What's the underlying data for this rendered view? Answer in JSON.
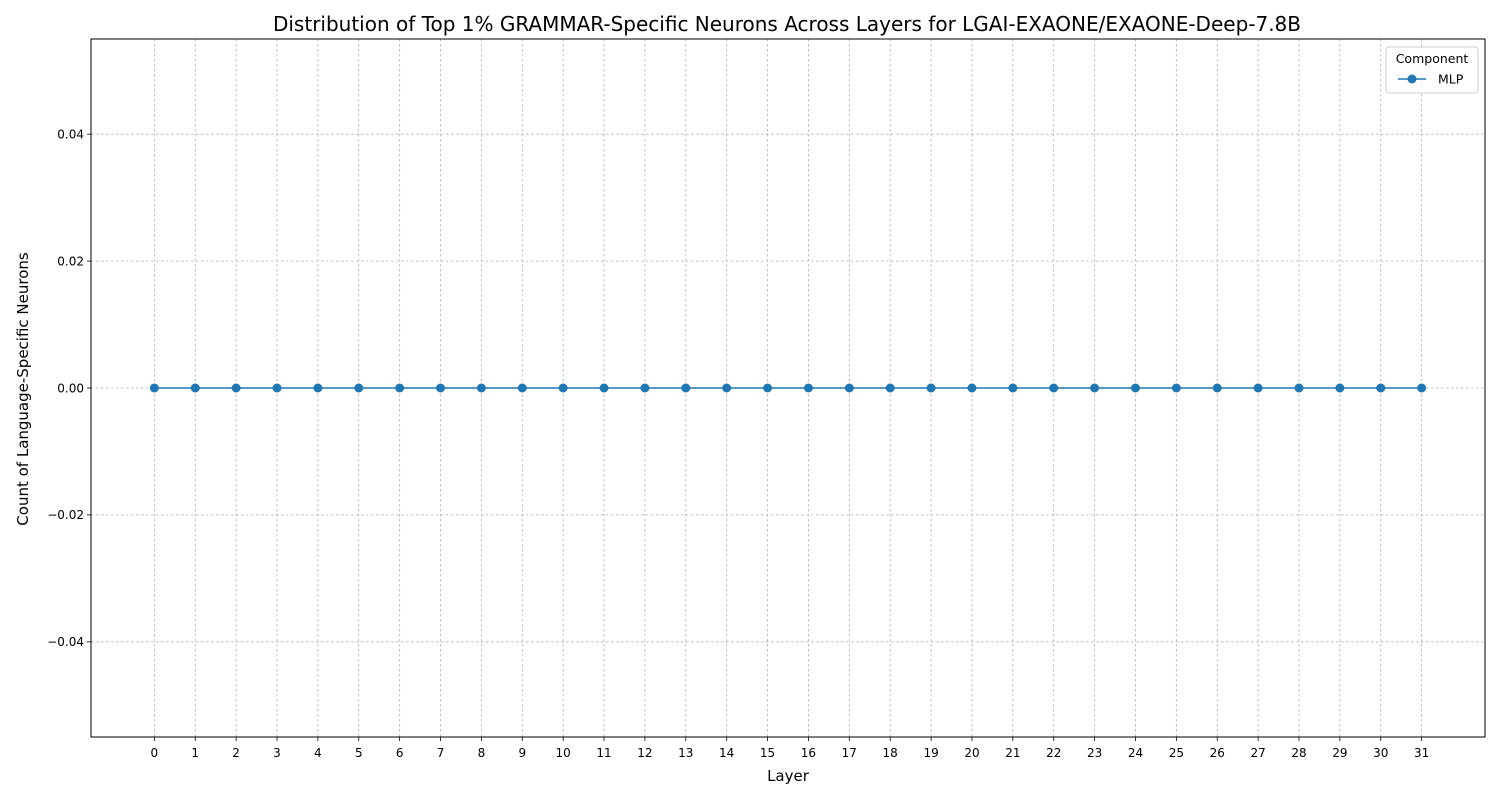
{
  "chart_data": {
    "type": "line",
    "title": "Distribution of Top 1% GRAMMAR-Specific Neurons Across Layers for LGAI-EXAONE/EXAONE-Deep-7.8B",
    "xlabel": "Layer",
    "ylabel": "Count of Language-Specific Neurons",
    "x": [
      0,
      1,
      2,
      3,
      4,
      5,
      6,
      7,
      8,
      9,
      10,
      11,
      12,
      13,
      14,
      15,
      16,
      17,
      18,
      19,
      20,
      21,
      22,
      23,
      24,
      25,
      26,
      27,
      28,
      29,
      30,
      31
    ],
    "xtick_labels": [
      "0",
      "1",
      "2",
      "3",
      "4",
      "5",
      "6",
      "7",
      "8",
      "9",
      "10",
      "11",
      "12",
      "13",
      "14",
      "15",
      "16",
      "17",
      "18",
      "19",
      "20",
      "21",
      "22",
      "23",
      "24",
      "25",
      "26",
      "27",
      "28",
      "29",
      "30",
      "31"
    ],
    "ylim": [
      -0.055,
      0.055
    ],
    "yticks": [
      -0.04,
      -0.02,
      0.0,
      0.02,
      0.04
    ],
    "ytick_labels": [
      "−0.04",
      "−0.02",
      "0.00",
      "0.02",
      "0.04"
    ],
    "grid": true,
    "legend": {
      "title": "Component",
      "placement": "top-right"
    },
    "series": [
      {
        "name": "MLP",
        "color": "#1f77b4",
        "marker": "circle",
        "values": [
          0,
          0,
          0,
          0,
          0,
          0,
          0,
          0,
          0,
          0,
          0,
          0,
          0,
          0,
          0,
          0,
          0,
          0,
          0,
          0,
          0,
          0,
          0,
          0,
          0,
          0,
          0,
          0,
          0,
          0,
          0,
          0
        ]
      }
    ]
  }
}
